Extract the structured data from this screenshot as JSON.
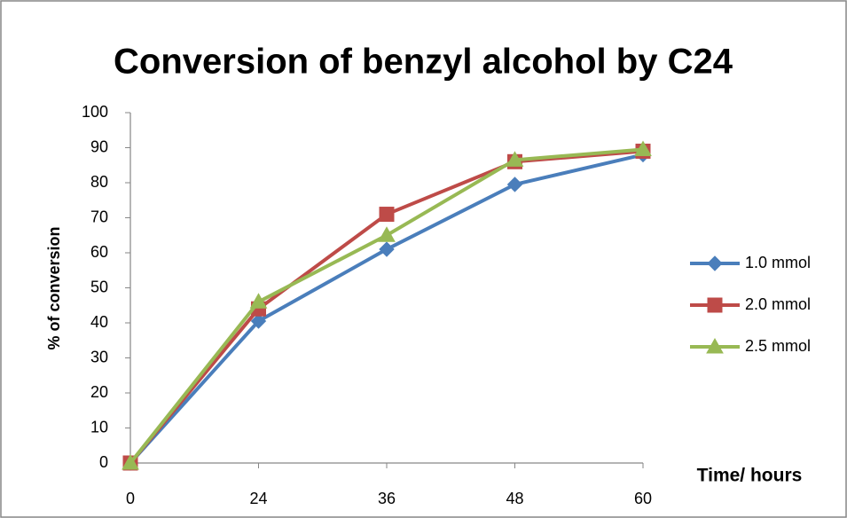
{
  "chart_data": {
    "type": "line",
    "title": "Conversion of benzyl alcohol by C24",
    "x_label": "Time/ hours",
    "y_label": "% of conversion",
    "categories": [
      "0",
      "24",
      "36",
      "48",
      "60"
    ],
    "series": [
      {
        "name": "1.0 mmol",
        "color": "#4a7ebb",
        "marker": "diamond",
        "values": [
          0,
          40.5,
          61,
          79.5,
          88
        ]
      },
      {
        "name": "2.0 mmol",
        "color": "#be4b48",
        "marker": "square",
        "values": [
          0,
          44,
          71,
          86,
          89
        ]
      },
      {
        "name": "2.5 mmol",
        "color": "#98b954",
        "marker": "triangle",
        "values": [
          0,
          46,
          65,
          86.5,
          89.5
        ]
      }
    ],
    "ylim": [
      0,
      100
    ],
    "yticks": [
      0,
      10,
      20,
      30,
      40,
      50,
      60,
      70,
      80,
      90,
      100
    ],
    "grid": false,
    "legend": "right"
  }
}
